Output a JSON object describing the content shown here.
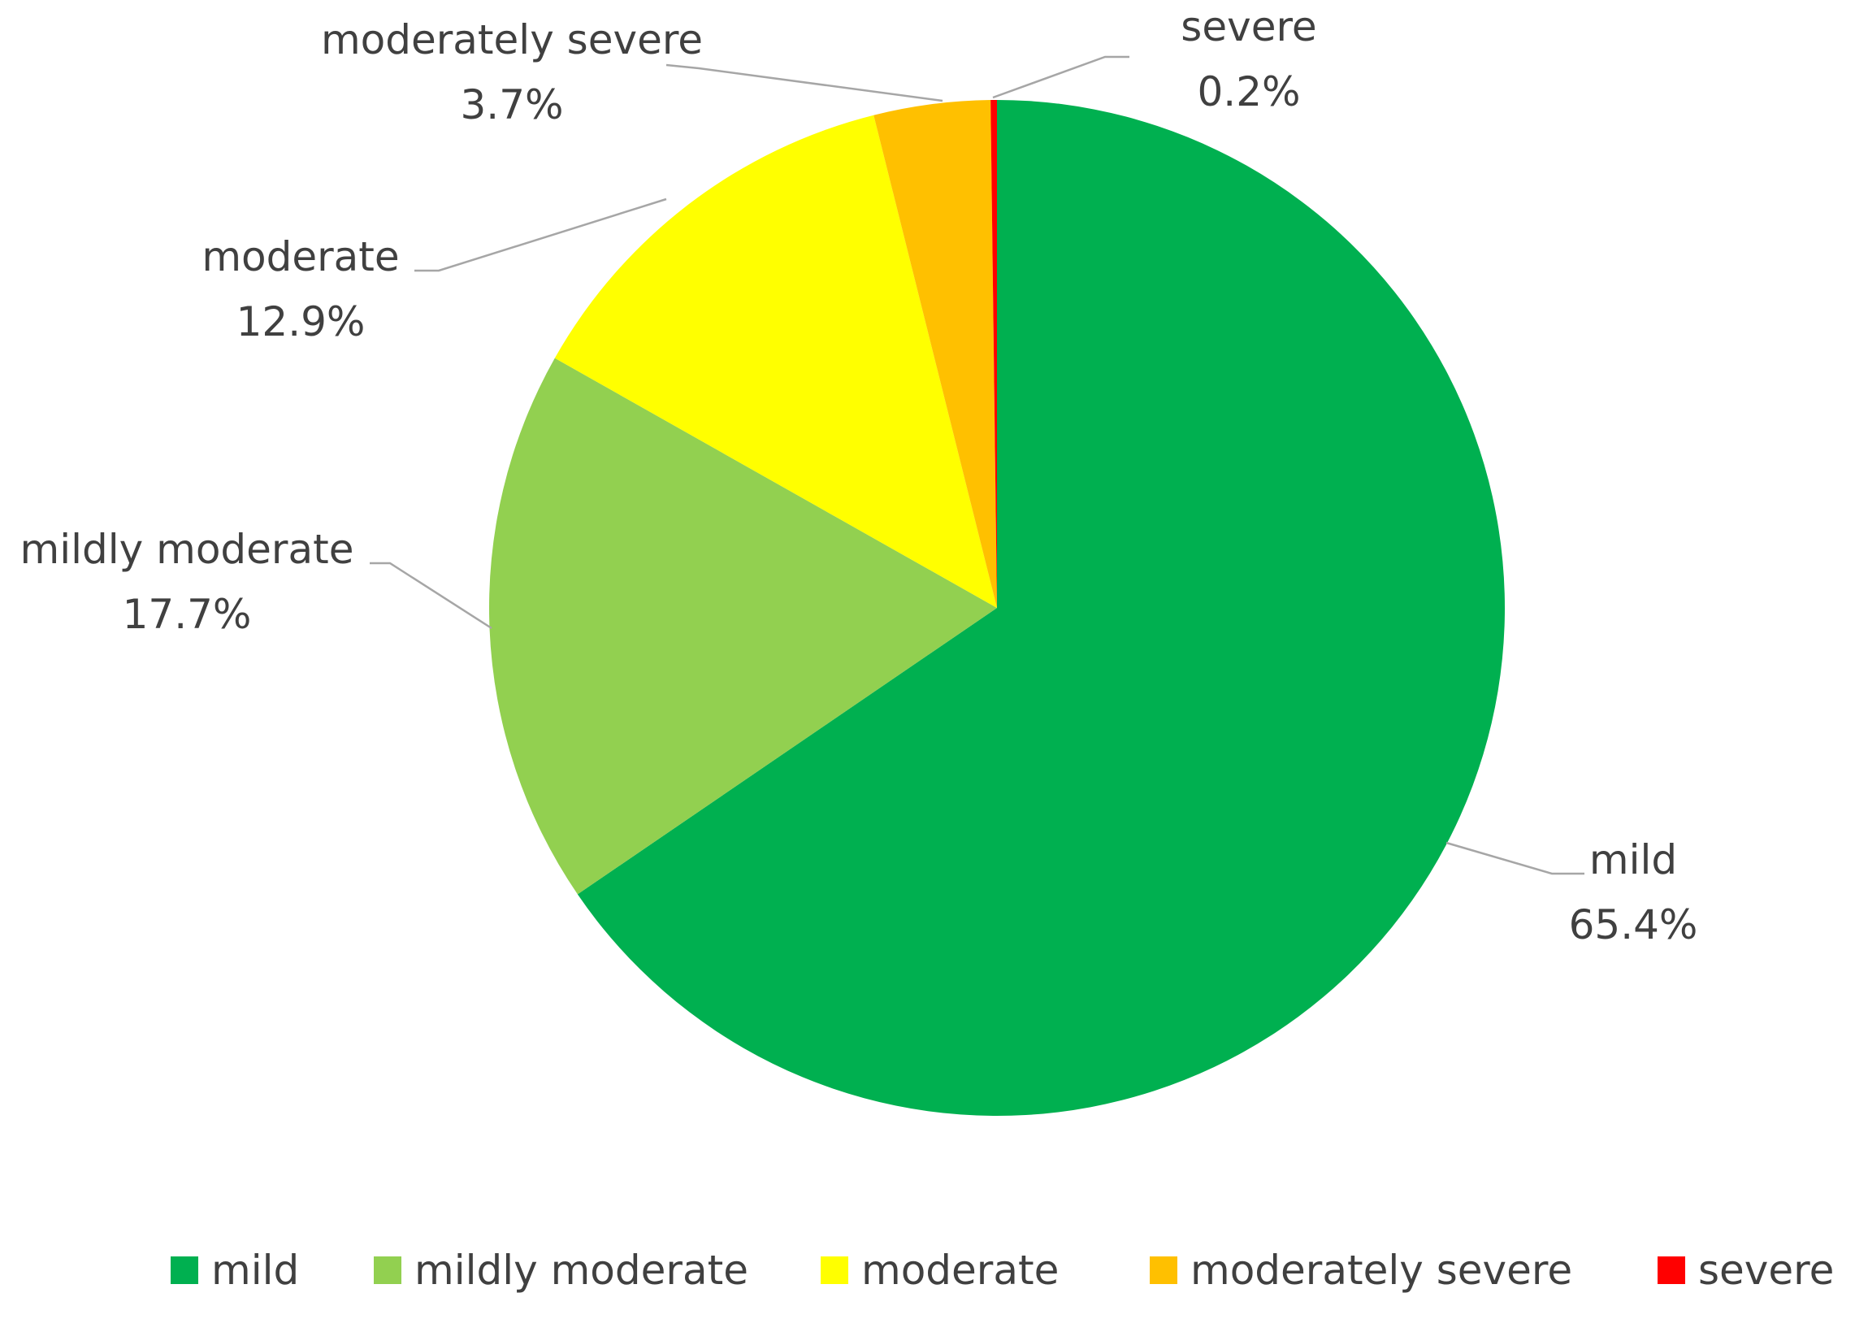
{
  "chart_data": {
    "type": "pie",
    "title": "",
    "categories": [
      "mild",
      "mildly moderate",
      "moderate",
      "moderately severe",
      "severe"
    ],
    "values": [
      65.4,
      17.7,
      12.9,
      3.7,
      0.2
    ],
    "value_labels": [
      "65.4%",
      "17.7%",
      "12.9%",
      "3.7%",
      "0.2%"
    ],
    "colors": [
      "#00B050",
      "#92D050",
      "#FFFF00",
      "#FFC000",
      "#FF0000"
    ],
    "start_angle": "12 o'clock",
    "direction": "clockwise",
    "legend": {
      "placement": "bottom",
      "entries": [
        "mild",
        "mildly moderate",
        "moderate",
        "moderately severe",
        "severe"
      ]
    }
  }
}
